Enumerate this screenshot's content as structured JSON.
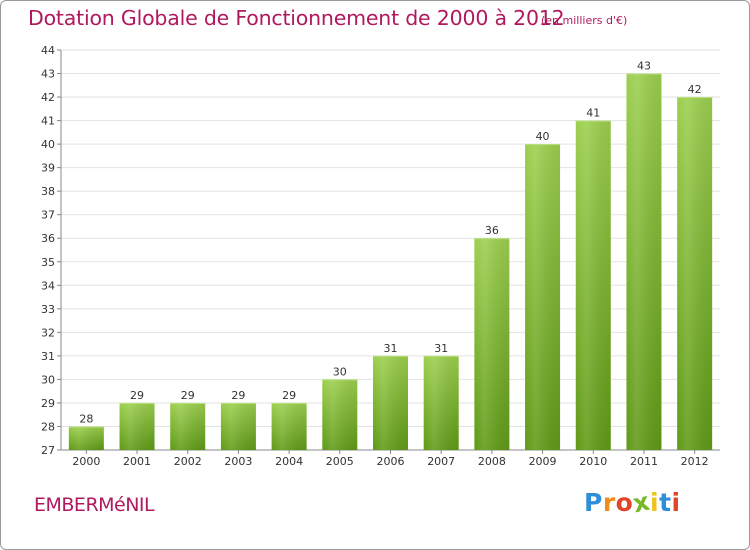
{
  "header": {
    "title": "Dotation Globale de Fonctionnement de 2000 à 2012",
    "subtitle": "(en milliers d'€)"
  },
  "footer": {
    "commune": "EMBERMéNIL",
    "logo_letters": [
      "P",
      "r",
      "o",
      "x",
      "i",
      "t",
      "i"
    ],
    "logo_text": "Proxiti"
  },
  "colors": {
    "title": "#b0195e",
    "bar_light": "#9ccf4e",
    "bar_dark": "#5f9a16",
    "logo": [
      "#2e8fd6",
      "#f08c1a",
      "#e0452a",
      "#7ab829",
      "#f0c21c",
      "#2e8fd6",
      "#e0452a"
    ]
  },
  "chart_data": {
    "type": "bar",
    "title": "Dotation Globale de Fonctionnement de 2000 à 2012",
    "subtitle": "(en milliers d'€)",
    "categories": [
      "2000",
      "2001",
      "2002",
      "2003",
      "2004",
      "2005",
      "2006",
      "2007",
      "2008",
      "2009",
      "2010",
      "2011",
      "2012"
    ],
    "values": [
      28,
      29,
      29,
      29,
      29,
      30,
      31,
      31,
      36,
      40,
      41,
      43,
      42
    ],
    "ylim": [
      27,
      44
    ],
    "yticks": [
      27,
      28,
      29,
      30,
      31,
      32,
      33,
      34,
      35,
      36,
      37,
      38,
      39,
      40,
      41,
      42,
      43,
      44
    ],
    "xlabel": "",
    "ylabel": "",
    "grid": true,
    "data_labels": true
  }
}
